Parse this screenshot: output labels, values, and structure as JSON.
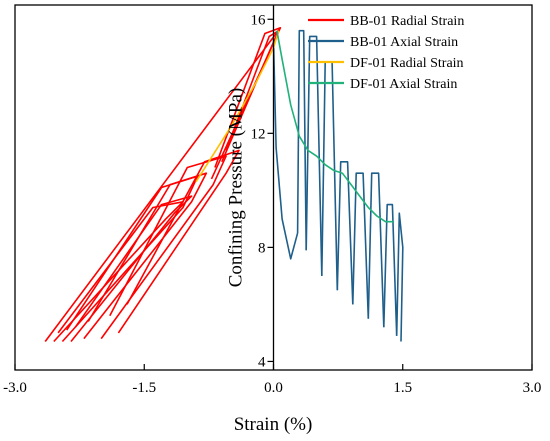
{
  "chart_data": {
    "type": "line",
    "xlabel": "Strain (%)",
    "ylabel": "Confining Pressure (MPa)",
    "xlim": [
      -3.0,
      3.0
    ],
    "ylim": [
      3.7,
      16.5
    ],
    "x_ticks": [
      -3.0,
      -1.5,
      0.0,
      1.5,
      3.0
    ],
    "x_tick_labels": [
      "-3.0",
      "-1.5",
      "0.0",
      "1.5",
      "3.0"
    ],
    "y_ticks": [
      4,
      8,
      12,
      16
    ],
    "y_tick_labels": [
      "4",
      "8",
      "12",
      "16"
    ],
    "legend_position": "top-right",
    "grid": false,
    "series": [
      {
        "name": "BB-01 Radial Strain",
        "color": "#ff0000",
        "cycles": [
          {
            "x": [
              -2.65,
              0.08
            ],
            "y": [
              4.7,
              15.7
            ]
          },
          {
            "x": [
              -2.35,
              -1.15,
              -0.95,
              -1.3,
              -2.3
            ],
            "y": [
              4.7,
              9.2,
              9.8,
              9.5,
              5.2
            ]
          },
          {
            "x": [
              -2.55,
              -1.25,
              -1.05,
              -1.4,
              -2.5
            ],
            "y": [
              4.7,
              9.0,
              9.6,
              9.4,
              5.0
            ]
          },
          {
            "x": [
              -2.2,
              -0.95,
              -0.78,
              -1.2,
              -2.15
            ],
            "y": [
              4.8,
              9.6,
              10.6,
              10.2,
              5.4
            ]
          },
          {
            "x": [
              -2.45,
              -1.05,
              -0.88,
              -1.3,
              -2.4
            ],
            "y": [
              4.7,
              9.4,
              10.5,
              10.1,
              5.1
            ]
          },
          {
            "x": [
              -2.0,
              -0.7,
              -0.55,
              -1.0,
              -1.9
            ],
            "y": [
              4.8,
              10.2,
              11.2,
              10.8,
              5.6
            ]
          },
          {
            "x": [
              -1.8,
              -0.55,
              -0.4,
              -0.8,
              -1.7
            ],
            "y": [
              5.0,
              10.6,
              11.4,
              11.0,
              6.0
            ]
          },
          {
            "x": [
              -0.72,
              0.02,
              0.08,
              -0.1,
              -0.68
            ],
            "y": [
              10.4,
              15.3,
              15.7,
              15.5,
              10.8
            ]
          },
          {
            "x": [
              -0.6,
              0.0,
              0.06,
              -0.05,
              -0.55
            ],
            "y": [
              11.0,
              15.2,
              15.6,
              15.4,
              11.4
            ]
          }
        ]
      },
      {
        "name": "BB-01 Axial Strain",
        "color": "#1f5f8b",
        "cycles": [
          {
            "x": [
              0.0,
              0.03,
              0.1,
              0.2,
              0.28
            ],
            "y": [
              15.3,
              11.5,
              9.0,
              7.6,
              8.5
            ]
          },
          {
            "x": [
              0.28,
              0.3,
              0.35,
              0.38
            ],
            "y": [
              8.5,
              15.6,
              15.6,
              7.9
            ]
          },
          {
            "x": [
              0.38,
              0.42,
              0.5,
              0.56
            ],
            "y": [
              7.9,
              15.4,
              15.4,
              7.0
            ]
          },
          {
            "x": [
              0.56,
              0.6,
              0.68,
              0.74
            ],
            "y": [
              7.0,
              14.5,
              14.5,
              6.5
            ]
          },
          {
            "x": [
              0.74,
              0.78,
              0.86,
              0.92
            ],
            "y": [
              6.5,
              11.0,
              11.0,
              6.0
            ]
          },
          {
            "x": [
              0.92,
              0.96,
              1.04,
              1.1
            ],
            "y": [
              6.0,
              10.6,
              10.6,
              5.5
            ]
          },
          {
            "x": [
              1.1,
              1.14,
              1.22,
              1.28
            ],
            "y": [
              5.5,
              10.6,
              10.6,
              5.2
            ]
          },
          {
            "x": [
              1.28,
              1.32,
              1.38,
              1.43
            ],
            "y": [
              5.2,
              9.5,
              9.5,
              4.9
            ]
          },
          {
            "x": [
              1.43,
              1.46,
              1.5,
              1.48
            ],
            "y": [
              4.9,
              9.2,
              8.0,
              4.7
            ]
          }
        ]
      },
      {
        "name": "DF-01 Radial Strain",
        "color": "#ffc000",
        "cycles": [
          {
            "x": [
              -0.9,
              -0.5,
              -0.2,
              0.0,
              0.06
            ],
            "y": [
              10.3,
              12.2,
              13.8,
              15.0,
              15.6
            ]
          }
        ]
      },
      {
        "name": "DF-01 Axial Strain",
        "color": "#20b27a",
        "cycles": [
          {
            "x": [
              0.04,
              0.1,
              0.2,
              0.3,
              0.4,
              0.5,
              0.6,
              0.7,
              0.8,
              0.9,
              1.0,
              1.1,
              1.2,
              1.3,
              1.4
            ],
            "y": [
              15.6,
              14.6,
              13.0,
              11.9,
              11.4,
              11.2,
              10.9,
              10.7,
              10.6,
              10.2,
              9.8,
              9.4,
              9.1,
              8.9,
              8.9
            ]
          }
        ]
      }
    ]
  }
}
